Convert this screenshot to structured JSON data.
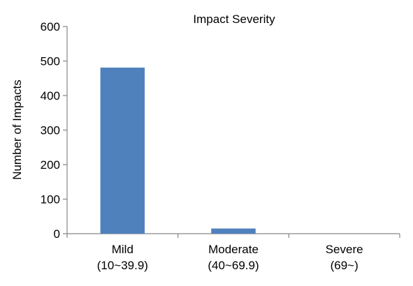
{
  "chart_data": {
    "type": "bar",
    "title": "Impact Severity",
    "xlabel": "",
    "ylabel": "Number of Impacts",
    "categories": [
      [
        "Mild",
        "(10~39.9)"
      ],
      [
        "Moderate",
        "(40~69.9)"
      ],
      [
        "Severe",
        "(69~)"
      ]
    ],
    "values": [
      481,
      15,
      0
    ],
    "ylim": [
      0,
      600
    ],
    "yticks": [
      0,
      100,
      200,
      300,
      400,
      500,
      600
    ],
    "grid": false,
    "legend": "none",
    "bar_color": "#4f81bd",
    "axis_color": "#868686"
  }
}
